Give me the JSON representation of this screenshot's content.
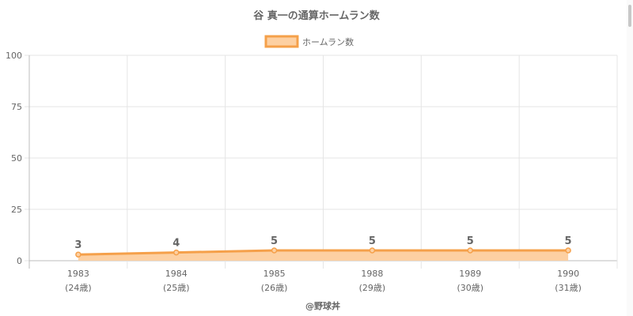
{
  "chart_data": {
    "type": "area",
    "title": "谷 真一の通算ホームラン数",
    "categories": [
      "1983",
      "1984",
      "1985",
      "1988",
      "1989",
      "1990"
    ],
    "sublabels": [
      "(24歳)",
      "(25歳)",
      "(26歳)",
      "(29歳)",
      "(30歳)",
      "(31歳)"
    ],
    "series": [
      {
        "name": "ホームラン数",
        "values": [
          3,
          4,
          5,
          5,
          5,
          5
        ]
      }
    ],
    "ylim": [
      0,
      100
    ],
    "yticks": [
      0,
      25,
      50,
      75,
      100
    ],
    "grid": true,
    "legend": "top-center",
    "colors": {
      "line": "#f5a04a",
      "fill": "#fdd0a2",
      "point": "#f5a04a"
    },
    "data_labels": [
      "3",
      "4",
      "5",
      "5",
      "5",
      "5"
    ],
    "footer": "@野球丼"
  }
}
